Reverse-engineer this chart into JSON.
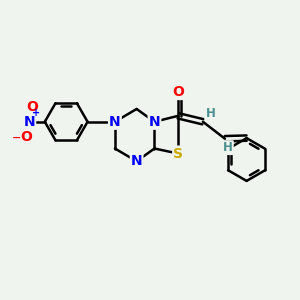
{
  "background_color": "#eff4ef",
  "atom_colors": {
    "N": "#0000ff",
    "O": "#ff0000",
    "S": "#ccaa00",
    "C": "#000000",
    "H": "#4a9090"
  },
  "bond_width": 1.8,
  "font_size_atoms": 10,
  "font_size_H": 8.5,
  "figsize": [
    3.0,
    3.0
  ],
  "dpi": 100
}
